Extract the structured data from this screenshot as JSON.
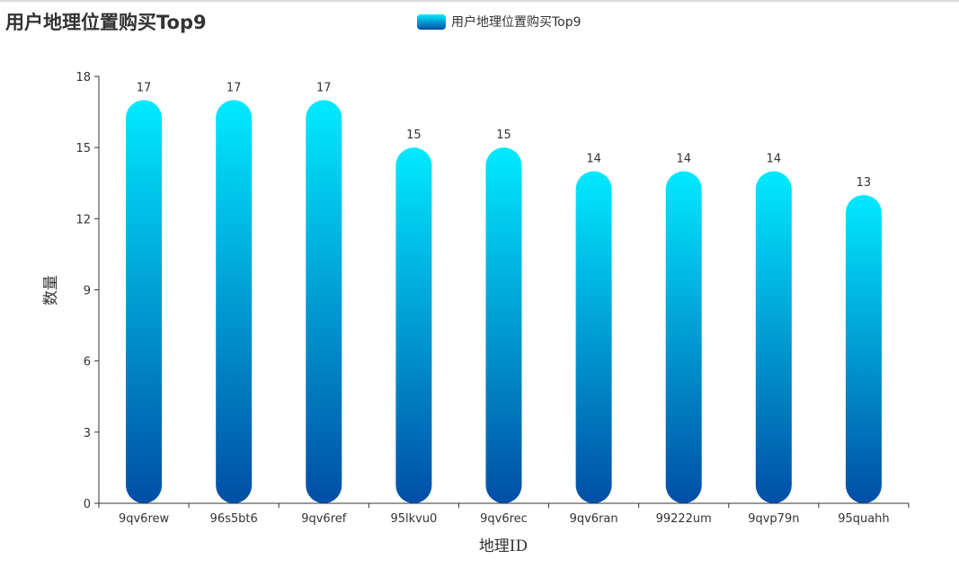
{
  "chart_data": {
    "type": "bar",
    "title": "用户地理位置购买Top9",
    "legend": {
      "label": "用户地理位置购买Top9",
      "position": "top-center"
    },
    "xlabel": "地理ID",
    "ylabel": "数量",
    "categories": [
      "9qv6rew",
      "96s5bt6",
      "9qv6ref",
      "95lkvu0",
      "9qv6rec",
      "9qv6ran",
      "99222um",
      "9qvp79n",
      "95quahh"
    ],
    "series": [
      {
        "name": "用户地理位置购买Top9",
        "values": [
          17,
          17,
          17,
          15,
          15,
          14,
          14,
          14,
          13
        ]
      }
    ],
    "ylim": [
      0,
      18
    ],
    "yticks": [
      "0",
      "3",
      "6",
      "9",
      "12",
      "15",
      "18"
    ],
    "grid": false,
    "colors": {
      "gradient_top": "#00eaff",
      "gradient_bottom": "#004ea6",
      "axis": "#333333",
      "text": "#333333"
    }
  }
}
